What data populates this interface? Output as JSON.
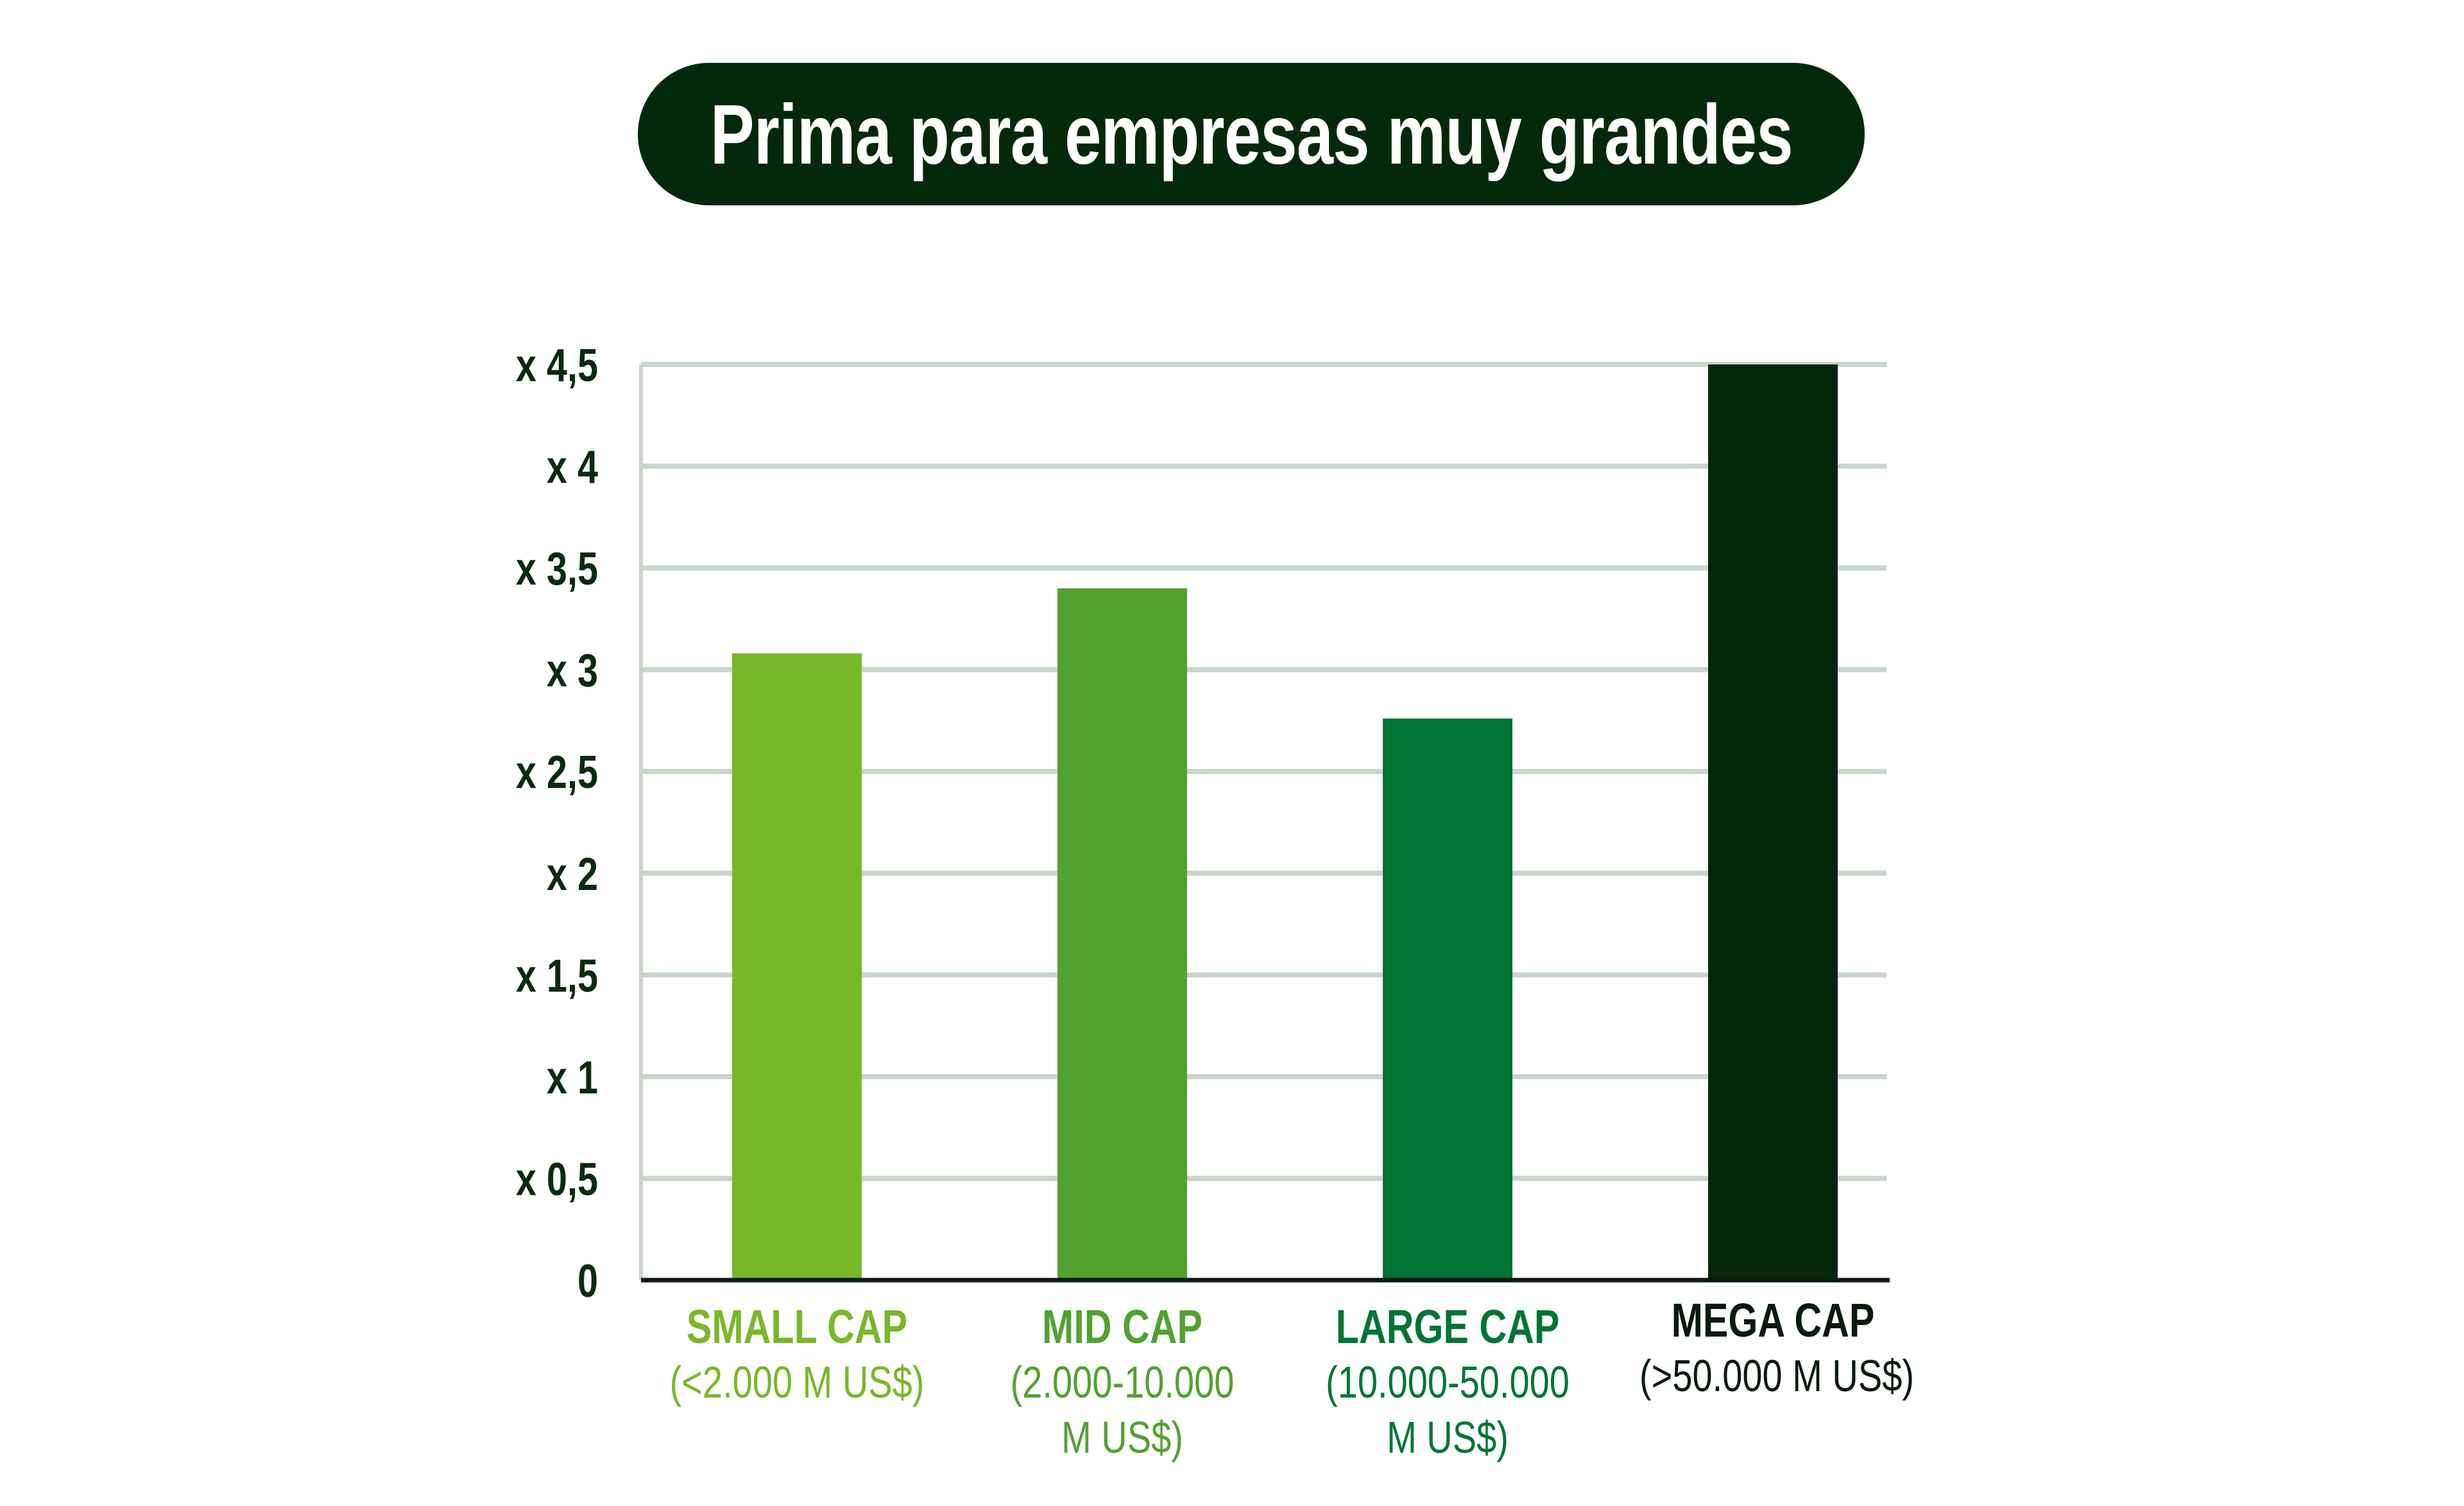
{
  "title": "Prima para empresas muy grandes",
  "chart_data": {
    "type": "bar",
    "title": "Prima para empresas muy grandes",
    "categories": [
      {
        "name": "SMALL CAP",
        "sub": [
          "(<2.000 M US$)"
        ],
        "color": "#78b828",
        "label_color": "#78b828"
      },
      {
        "name": "MID CAP",
        "sub": [
          "(2.000-10.000",
          "M US$)"
        ],
        "color": "#52a22f",
        "label_color": "#52a22f"
      },
      {
        "name": "LARGE CAP",
        "sub": [
          "(10.000-50.000",
          "M US$)"
        ],
        "color": "#007534",
        "label_color": "#007534"
      },
      {
        "name": "MEGA CAP",
        "sub": [
          "(>50.000 M US$)"
        ],
        "color": "#032608",
        "label_color": "#0a1a0c"
      }
    ],
    "values": [
      3.08,
      3.4,
      2.76,
      4.5
    ],
    "ylim": [
      0,
      4.5
    ],
    "yticks": [
      0,
      0.5,
      1,
      1.5,
      2,
      2.5,
      3,
      3.5,
      4,
      4.5
    ],
    "ytick_labels": [
      "0",
      "x 0,5",
      "x 1",
      "x 1,5",
      "x 2",
      "x 2,5",
      "x 3",
      "x 3,5",
      "x 4",
      "x 4,5"
    ],
    "grid": true,
    "grid_color": "#c9d5c9",
    "axis_color": "#0a1a0c",
    "title_bg": "#03290a"
  }
}
